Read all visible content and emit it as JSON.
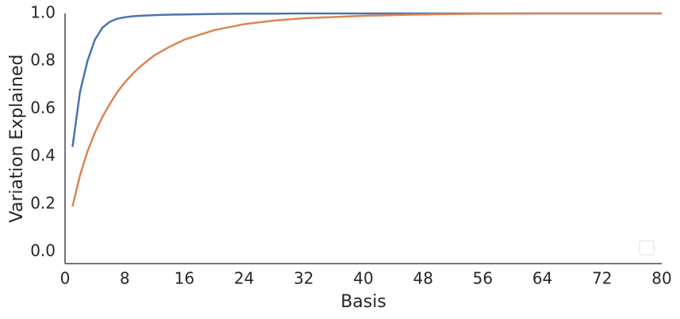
{
  "chart_data": {
    "type": "line",
    "xlabel": "Basis",
    "ylabel": "Variation Explained",
    "x": [
      1,
      2,
      3,
      4,
      5,
      6,
      7,
      8,
      9,
      10,
      12,
      14,
      16,
      20,
      24,
      28,
      32,
      40,
      48,
      56,
      64,
      72,
      80
    ],
    "series": [
      {
        "color": "#4c72b0",
        "values": [
          0.44,
          0.67,
          0.8,
          0.89,
          0.94,
          0.965,
          0.978,
          0.984,
          0.988,
          0.99,
          0.993,
          0.995,
          0.996,
          0.998,
          0.999,
          0.999,
          1.0,
          1.0,
          1.0,
          1.0,
          1.0,
          1.0,
          1.0
        ]
      },
      {
        "color": "#dd8452",
        "values": [
          0.19,
          0.32,
          0.42,
          0.5,
          0.565,
          0.62,
          0.67,
          0.71,
          0.745,
          0.775,
          0.825,
          0.86,
          0.89,
          0.93,
          0.955,
          0.97,
          0.98,
          0.99,
          0.996,
          0.999,
          1.0,
          1.0,
          1.0
        ]
      }
    ],
    "xlim": [
      0,
      80
    ],
    "xticks": [
      0,
      8,
      16,
      24,
      32,
      40,
      48,
      56,
      64,
      72,
      80
    ],
    "ylim": [
      -0.05,
      1.0
    ],
    "yticks": [
      {
        "value": 0,
        "label": "0.0"
      },
      0.2,
      0.4,
      0.6,
      0.8,
      {
        "value": 1,
        "label": "1.0"
      }
    ],
    "grid": false
  }
}
